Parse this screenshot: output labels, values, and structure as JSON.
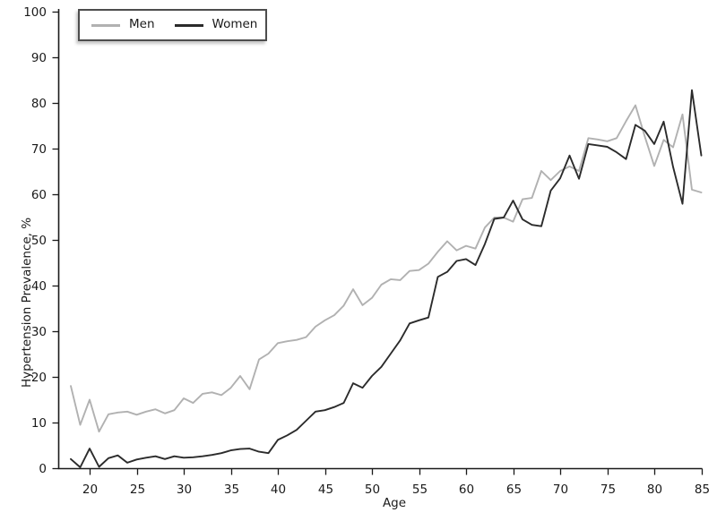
{
  "chart_data": {
    "type": "line",
    "title": "",
    "xlabel": "Age",
    "ylabel": "Hypertension Prevalence, %",
    "xlim": [
      17.4,
      85.6
    ],
    "ylim": [
      0,
      100
    ],
    "x_ticks": [
      20,
      25,
      30,
      35,
      40,
      45,
      50,
      55,
      60,
      65,
      70,
      75,
      80,
      85
    ],
    "y_ticks": [
      0,
      10,
      20,
      30,
      40,
      50,
      60,
      70,
      80,
      90,
      100
    ],
    "grid": false,
    "legend_position": "top-left",
    "x": [
      18,
      19,
      20,
      21,
      22,
      23,
      24,
      25,
      26,
      27,
      28,
      29,
      30,
      31,
      32,
      33,
      34,
      35,
      36,
      37,
      38,
      39,
      40,
      41,
      42,
      43,
      44,
      45,
      46,
      47,
      48,
      49,
      50,
      51,
      52,
      53,
      54,
      55,
      56,
      57,
      58,
      59,
      60,
      61,
      62,
      63,
      64,
      65,
      66,
      67,
      68,
      69,
      70,
      71,
      72,
      73,
      74,
      75,
      76,
      77,
      78,
      79,
      80,
      81,
      82,
      83,
      84,
      85
    ],
    "series": [
      {
        "name": "Men",
        "color": "#b1b1b1",
        "values": [
          18.0,
          9.5,
          15.0,
          8.0,
          11.8,
          12.2,
          12.4,
          11.7,
          12.4,
          12.9,
          12.0,
          12.7,
          15.3,
          14.3,
          16.3,
          16.6,
          16.0,
          17.6,
          20.2,
          17.3,
          23.8,
          25.1,
          27.4,
          27.8,
          28.1,
          28.7,
          31.0,
          32.4,
          33.5,
          35.6,
          39.2,
          35.7,
          37.3,
          40.2,
          41.4,
          41.2,
          43.2,
          43.4,
          44.8,
          47.4,
          49.7,
          47.7,
          48.7,
          48.1,
          52.7,
          54.9,
          54.9,
          54.0,
          58.9,
          59.2,
          65.1,
          63.1,
          65.1,
          66.1,
          65.1,
          72.3,
          72.0,
          71.6,
          72.3,
          76.0,
          79.5,
          72.6,
          66.2,
          71.9,
          70.3,
          77.5,
          61.0,
          60.4
        ]
      },
      {
        "name": "Women",
        "color": "#2b2b2b",
        "values": [
          2.0,
          0.2,
          4.3,
          0.3,
          2.2,
          2.8,
          1.2,
          1.9,
          2.3,
          2.6,
          2.0,
          2.6,
          2.3,
          2.4,
          2.6,
          2.9,
          3.3,
          3.9,
          4.2,
          4.3,
          3.6,
          3.3,
          6.2,
          7.2,
          8.4,
          10.4,
          12.4,
          12.7,
          13.4,
          14.3,
          18.6,
          17.6,
          20.2,
          22.2,
          25.1,
          28.0,
          31.7,
          32.4,
          33.0,
          41.9,
          43.0,
          45.4,
          45.8,
          44.5,
          49.1,
          54.6,
          54.9,
          58.6,
          54.5,
          53.3,
          53.0,
          60.8,
          63.5,
          68.5,
          63.4,
          71.0,
          70.7,
          70.4,
          69.2,
          67.7,
          75.2,
          73.9,
          71.0,
          75.9,
          66.0,
          57.9,
          82.8,
          68.5
        ]
      }
    ]
  }
}
